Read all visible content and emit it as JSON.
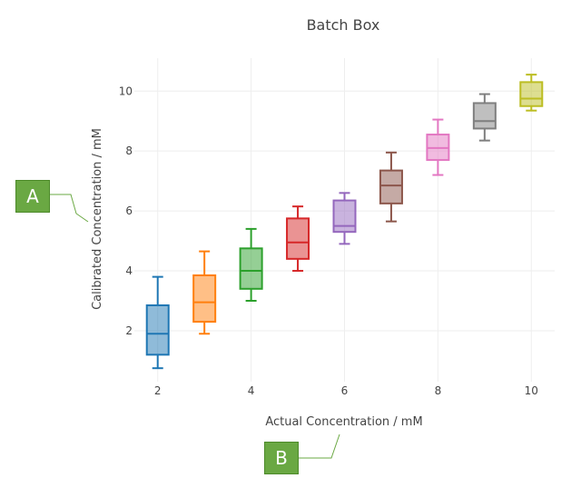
{
  "chart_data": {
    "type": "box",
    "title": "Batch Box",
    "xlabel": "Actual Concentration / mM",
    "ylabel": "Calibrated Concentration / mM",
    "xlim": [
      1.5,
      10.5
    ],
    "ylim": [
      0.3,
      11.1
    ],
    "xticks": [
      2,
      4,
      6,
      8,
      10
    ],
    "yticks": [
      2,
      4,
      6,
      8,
      10
    ],
    "grid": true,
    "series": [
      {
        "x": 2,
        "min": 0.75,
        "q1": 1.2,
        "median": 1.9,
        "q3": 2.85,
        "max": 3.8,
        "color": "#1f77b4"
      },
      {
        "x": 3,
        "min": 1.9,
        "q1": 2.3,
        "median": 2.95,
        "q3": 3.85,
        "max": 4.65,
        "color": "#ff7f0e"
      },
      {
        "x": 4,
        "min": 3.0,
        "q1": 3.4,
        "median": 4.0,
        "q3": 4.75,
        "max": 5.4,
        "color": "#2ca02c"
      },
      {
        "x": 5,
        "min": 4.0,
        "q1": 4.4,
        "median": 4.95,
        "q3": 5.75,
        "max": 6.15,
        "color": "#d62728"
      },
      {
        "x": 6,
        "min": 4.9,
        "q1": 5.3,
        "median": 5.5,
        "q3": 6.35,
        "max": 6.6,
        "color": "#9467bd"
      },
      {
        "x": 7,
        "min": 5.65,
        "q1": 6.25,
        "median": 6.85,
        "q3": 7.35,
        "max": 7.95,
        "color": "#8c564b"
      },
      {
        "x": 8,
        "min": 7.2,
        "q1": 7.7,
        "median": 8.1,
        "q3": 8.55,
        "max": 9.05,
        "color": "#e377c2"
      },
      {
        "x": 9,
        "min": 8.35,
        "q1": 8.75,
        "median": 9.0,
        "q3": 9.6,
        "max": 9.9,
        "color": "#7f7f7f"
      },
      {
        "x": 10,
        "min": 9.35,
        "q1": 9.5,
        "median": 9.75,
        "q3": 10.3,
        "max": 10.55,
        "color": "#bcbd22"
      }
    ]
  },
  "callouts": {
    "a": "A",
    "b": "B"
  }
}
